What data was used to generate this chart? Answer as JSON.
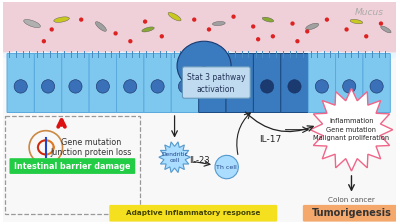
{
  "mucus_label": "Mucus",
  "mucus_color": "#f0d0d8",
  "cell_color_main": "#7ec8f0",
  "cell_color_dark": "#3a7abf",
  "cell_color_mid": "#5aaade",
  "cell_color_light": "#b8ddf8",
  "background_color": "#ffffff",
  "stat3_box_color": "#c0daf0",
  "stat3_box_edge": "#6699bb",
  "stat3_text": "Stat 3 pathway\nactivation",
  "il17_label": "IL-17",
  "il23_label": "IL-23",
  "dendritic_label": "Dendritic\ncell",
  "th_label": "Th cell",
  "adaptive_label": "Adaptive inflammatory response",
  "adaptive_color": "#f5e020",
  "intestinal_label": "Intestinal barrier damage",
  "intestinal_color": "#22cc44",
  "gene_mutation_label": "Gene mutation",
  "junction_label": "Junction protein loss",
  "inflammation_label": "Inflammation\nGene mutation\nMalignant proliferation",
  "colon_label": "Colon cancer",
  "tumorigenesis_label": "Tumorigenesis",
  "tumorigenesis_color": "#f4a86c",
  "starburst_fill": "#ffffff",
  "starburst_edge": "#ee6688",
  "arrow_color": "#222222",
  "red_arrow_color": "#dd1111",
  "dna_color1": "#e07820",
  "dna_color2": "#cc1111",
  "dashed_box_color": "#999999",
  "wavy_top_color": "#e8f4ff",
  "brush_border_color": "#4a8abf"
}
